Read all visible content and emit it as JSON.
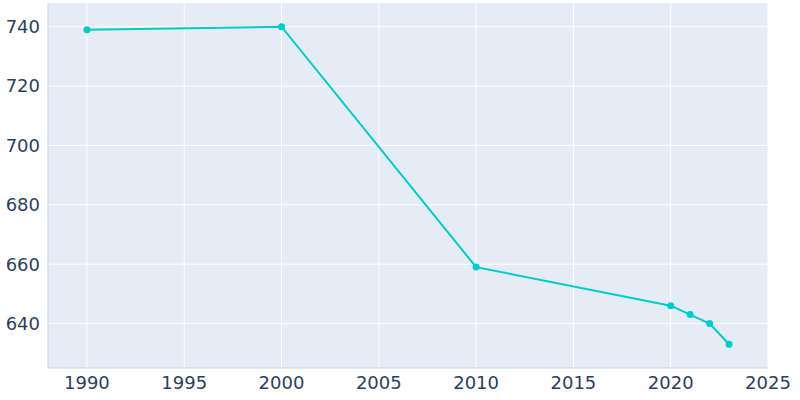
{
  "chart_data": {
    "type": "line",
    "x": [
      1990,
      2000,
      2010,
      2020,
      2021,
      2022,
      2023
    ],
    "values": [
      739,
      740,
      659,
      646,
      643,
      640,
      633
    ],
    "color": "#00cccc",
    "marker": "circle",
    "xlim": [
      1988,
      2025
    ],
    "xticks": [
      1990,
      1995,
      2000,
      2005,
      2010,
      2015,
      2020,
      2025
    ],
    "ylim": [
      625,
      748
    ],
    "yticks": [
      640,
      660,
      680,
      700,
      720,
      740
    ],
    "grid": true
  }
}
